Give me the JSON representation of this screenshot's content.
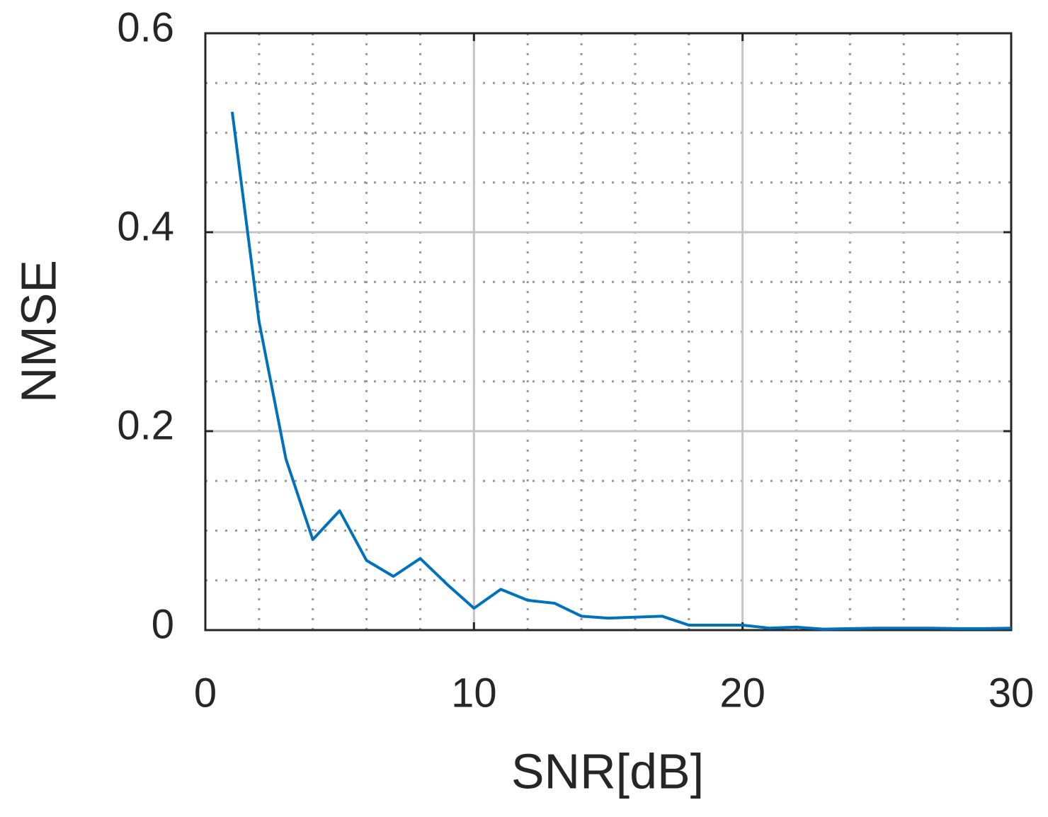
{
  "chart_data": {
    "type": "line",
    "xlabel": "SNR[dB]",
    "ylabel": "NMSE",
    "x": [
      1,
      2,
      3,
      4,
      5,
      6,
      7,
      8,
      9,
      10,
      11,
      12,
      13,
      14,
      15,
      16,
      17,
      18,
      19,
      20,
      21,
      22,
      23,
      24,
      25,
      26,
      27,
      28,
      29,
      30
    ],
    "series": [
      {
        "color": "#0072bd",
        "values": [
          0.521,
          0.31,
          0.172,
          0.091,
          0.12,
          0.07,
          0.054,
          0.072,
          0.046,
          0.022,
          0.041,
          0.03,
          0.027,
          0.014,
          0.012,
          0.013,
          0.014,
          0.005,
          0.005,
          0.005,
          0.002,
          0.003,
          0.001,
          0.0015,
          0.002,
          0.002,
          0.002,
          0.0015,
          0.0015,
          0.002
        ]
      }
    ],
    "xlim": [
      0,
      30
    ],
    "xticks": [
      0,
      10,
      20,
      30
    ],
    "ylim": [
      0,
      0.6
    ],
    "yticks": [
      0,
      0.2,
      0.4,
      0.6
    ],
    "grid": true,
    "minor_grid": true
  }
}
